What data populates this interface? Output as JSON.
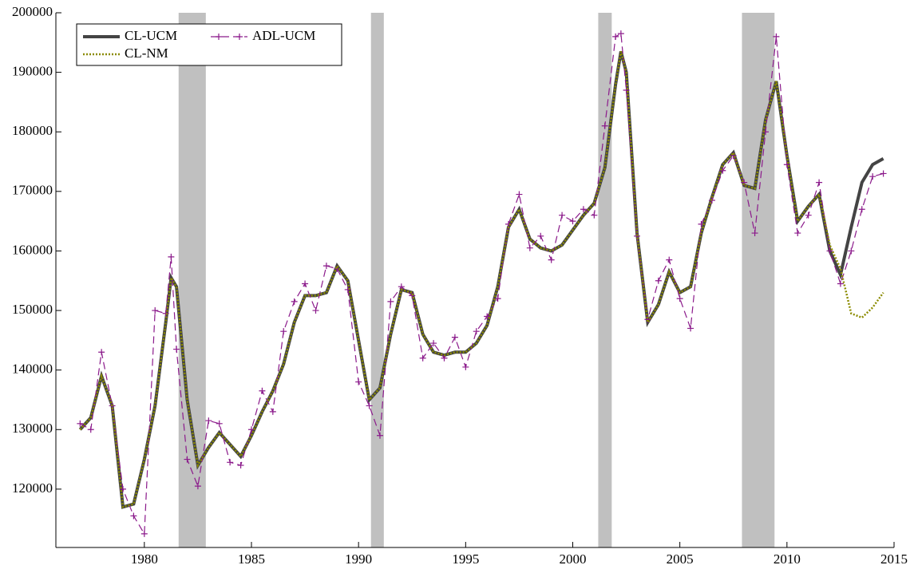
{
  "chart_data": {
    "type": "line",
    "xlim": [
      1975.87,
      2015
    ],
    "ylim": [
      110200,
      200000
    ],
    "xticks": [
      1980,
      1985,
      1990,
      1995,
      2000,
      2005,
      2010,
      2015
    ],
    "yticks": [
      120000,
      130000,
      140000,
      150000,
      160000,
      170000,
      180000,
      190000,
      200000
    ],
    "shaded_regions": [
      [
        1981.6,
        1982.87
      ],
      [
        1990.58,
        1991.18
      ],
      [
        2001.19,
        2001.82
      ],
      [
        2007.9,
        2009.42
      ]
    ],
    "shade_color": "#c0c0c0",
    "legend": "upper left",
    "x": [
      1977.0,
      1977.5,
      1978.0,
      1978.5,
      1979.0,
      1979.5,
      1980.0,
      1980.5,
      1981.0,
      1981.25,
      1981.5,
      1982.0,
      1982.5,
      1983.0,
      1983.5,
      1984.0,
      1984.5,
      1985.0,
      1985.5,
      1986.0,
      1986.5,
      1987.0,
      1987.5,
      1988.0,
      1988.5,
      1989.0,
      1989.5,
      1990.0,
      1990.5,
      1991.0,
      1991.5,
      1992.0,
      1992.5,
      1993.0,
      1993.5,
      1994.0,
      1994.5,
      1995.0,
      1995.5,
      1996.0,
      1996.5,
      1997.0,
      1997.5,
      1998.0,
      1998.5,
      1999.0,
      1999.5,
      2000.0,
      2000.5,
      2001.0,
      2001.5,
      2002.0,
      2002.25,
      2002.5,
      2003.0,
      2003.5,
      2004.0,
      2004.5,
      2005.0,
      2005.5,
      2006.0,
      2006.5,
      2007.0,
      2007.5,
      2008.0,
      2008.5,
      2009.0,
      2009.5,
      2010.0,
      2010.5,
      2011.0,
      2011.5,
      2012.0,
      2012.5,
      2013.0,
      2013.5,
      2014.0,
      2014.5
    ],
    "series": [
      {
        "name": "CL-UCM",
        "color": "#444444",
        "style": "solid",
        "values": [
          130000,
          132000,
          139000,
          134000,
          117000,
          117500,
          125000,
          134000,
          148000,
          155500,
          154000,
          135000,
          124000,
          127000,
          129500,
          127500,
          125500,
          129000,
          133000,
          136500,
          141000,
          148000,
          152500,
          152500,
          153000,
          157500,
          155000,
          145000,
          135000,
          137000,
          146000,
          153500,
          153000,
          146000,
          143000,
          142500,
          143000,
          143000,
          144500,
          147500,
          154000,
          164000,
          167000,
          162000,
          160500,
          160000,
          161000,
          163500,
          166000,
          168000,
          174000,
          188000,
          193500,
          190000,
          163000,
          148000,
          151000,
          156500,
          153000,
          154000,
          163000,
          169000,
          174500,
          176500,
          171000,
          170500,
          182000,
          188500,
          176000,
          165000,
          167500,
          169500,
          160000,
          156000,
          164000,
          171500,
          174500,
          175500
        ]
      },
      {
        "name": "ADL-UCM",
        "color": "#8b1a8b",
        "style": "dashed",
        "values": [
          131000,
          130000,
          143000,
          134000,
          120000,
          115500,
          112500,
          150000,
          149500,
          159000,
          143500,
          125000,
          120500,
          131500,
          131000,
          124500,
          124000,
          130000,
          136500,
          133000,
          146500,
          151500,
          154500,
          150000,
          157500,
          157000,
          153500,
          138000,
          134000,
          129000,
          151500,
          154000,
          152500,
          142000,
          144500,
          142000,
          145500,
          140500,
          146500,
          149000,
          152000,
          164500,
          169500,
          160500,
          162500,
          158500,
          166000,
          165000,
          167000,
          166000,
          181000,
          196000,
          196500,
          187000,
          162500,
          148500,
          155000,
          158500,
          152000,
          147000,
          164500,
          168500,
          173500,
          176000,
          171500,
          163000,
          180000,
          196000,
          174500,
          163000,
          166000,
          171500,
          160000,
          154500,
          160000,
          167000,
          172500,
          173000
        ]
      },
      {
        "name": "CL-NM",
        "color": "#8b8b00",
        "style": "dotted",
        "values": [
          130000,
          132000,
          139000,
          134000,
          117000,
          117500,
          125000,
          134000,
          148000,
          155500,
          154000,
          135000,
          124000,
          127000,
          129500,
          127500,
          125500,
          129000,
          133000,
          136500,
          141000,
          148000,
          152500,
          152500,
          153000,
          157500,
          155000,
          145000,
          135000,
          137000,
          146000,
          153500,
          153000,
          146000,
          143000,
          142500,
          143000,
          143000,
          144500,
          147500,
          154000,
          164000,
          167000,
          162000,
          160500,
          160000,
          161000,
          163500,
          166000,
          168000,
          174000,
          188000,
          193500,
          190000,
          163000,
          148000,
          151000,
          156500,
          153000,
          154000,
          163000,
          169000,
          174500,
          176500,
          171000,
          170500,
          182000,
          188500,
          176000,
          165000,
          167500,
          169500,
          161000,
          157000,
          149500,
          148800,
          150500,
          153000
        ]
      }
    ]
  }
}
